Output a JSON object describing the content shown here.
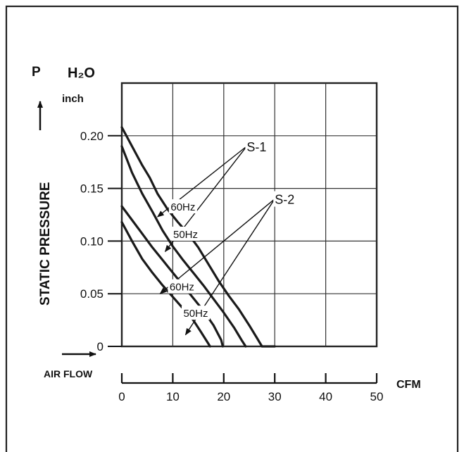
{
  "chart_data": {
    "type": "line",
    "y_header": {
      "symbol": "P",
      "unit": "H₂O",
      "subunit": "inch"
    },
    "ylabel": "STATIC PRESSURE",
    "x_header": "AIR FLOW",
    "x_unit": "CFM",
    "xlim": [
      0,
      50
    ],
    "ylim": [
      0,
      0.25
    ],
    "x_ticks": [
      "0",
      "10",
      "20",
      "30",
      "40",
      "50"
    ],
    "y_ticks": [
      {
        "value": 0,
        "label": "0"
      },
      {
        "value": 0.05,
        "label": "0.05"
      },
      {
        "value": 0.1,
        "label": "0.10"
      },
      {
        "value": 0.15,
        "label": "0.15"
      },
      {
        "value": 0.2,
        "label": "0.20"
      }
    ],
    "grid": true,
    "series": [
      {
        "name": "S-1 60Hz",
        "points": [
          [
            0,
            0.208
          ],
          [
            2,
            0.19
          ],
          [
            4,
            0.172
          ],
          [
            5.5,
            0.16
          ],
          [
            7,
            0.145
          ],
          [
            9,
            0.13
          ],
          [
            11,
            0.118
          ],
          [
            13,
            0.107
          ],
          [
            15,
            0.094
          ],
          [
            17,
            0.078
          ],
          [
            19,
            0.062
          ],
          [
            21,
            0.048
          ],
          [
            23,
            0.035
          ],
          [
            25,
            0.02
          ],
          [
            26.5,
            0.008
          ],
          [
            27.5,
            0.0
          ],
          [
            30,
            0.0
          ]
        ]
      },
      {
        "name": "S-1 50Hz",
        "points": [
          [
            0,
            0.19
          ],
          [
            2,
            0.165
          ],
          [
            4,
            0.145
          ],
          [
            6,
            0.128
          ],
          [
            8,
            0.11
          ],
          [
            10,
            0.095
          ],
          [
            12,
            0.082
          ],
          [
            14,
            0.07
          ],
          [
            16,
            0.058
          ],
          [
            18,
            0.045
          ],
          [
            20,
            0.032
          ],
          [
            22,
            0.018
          ],
          [
            23.5,
            0.006
          ],
          [
            24.3,
            0.0
          ]
        ]
      },
      {
        "name": "S-2 60Hz",
        "points": [
          [
            0,
            0.133
          ],
          [
            2,
            0.12
          ],
          [
            4,
            0.107
          ],
          [
            6,
            0.094
          ],
          [
            8,
            0.082
          ],
          [
            10,
            0.07
          ],
          [
            12,
            0.058
          ],
          [
            14,
            0.046
          ],
          [
            16,
            0.034
          ],
          [
            18,
            0.02
          ],
          [
            19.5,
            0.006
          ],
          [
            19.8,
            0.0
          ]
        ]
      },
      {
        "name": "S-2 50Hz",
        "points": [
          [
            0,
            0.118
          ],
          [
            2,
            0.1
          ],
          [
            4,
            0.083
          ],
          [
            6,
            0.07
          ],
          [
            8,
            0.058
          ],
          [
            10,
            0.047
          ],
          [
            12,
            0.036
          ],
          [
            14,
            0.025
          ],
          [
            15.5,
            0.014
          ],
          [
            16.8,
            0.004
          ],
          [
            17.3,
            0.0
          ]
        ]
      }
    ],
    "annotations": [
      {
        "text": "S-1",
        "x": 24.5,
        "y": 0.19,
        "arrows_to": [
          [
            7,
            0.123
          ],
          [
            8.5,
            0.09
          ]
        ]
      },
      {
        "text": "S-2",
        "x": 30,
        "y": 0.14,
        "arrows_to": [
          [
            7.5,
            0.05
          ],
          [
            12.5,
            0.011
          ]
        ]
      },
      {
        "text": "60Hz",
        "x": 12,
        "y": 0.133
      },
      {
        "text": "50Hz",
        "x": 12.5,
        "y": 0.107
      },
      {
        "text": "60Hz",
        "x": 11.8,
        "y": 0.057
      },
      {
        "text": "50Hz",
        "x": 14.5,
        "y": 0.032
      }
    ],
    "colors": {
      "curve": "#1a1a1a",
      "grid": "#333333",
      "frame": "#222222"
    }
  }
}
